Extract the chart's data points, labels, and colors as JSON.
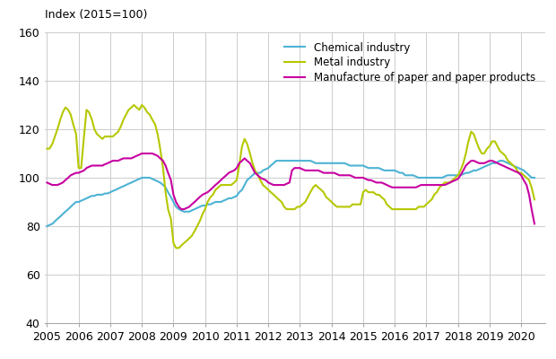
{
  "title": "Index (2015=100)",
  "ylim": [
    40,
    160
  ],
  "yticks": [
    40,
    60,
    80,
    100,
    120,
    140,
    160
  ],
  "xlim": [
    2004.92,
    2020.75
  ],
  "xticks": [
    2005,
    2006,
    2007,
    2008,
    2009,
    2010,
    2011,
    2012,
    2013,
    2014,
    2015,
    2016,
    2017,
    2018,
    2019,
    2020
  ],
  "legend_labels": [
    "Chemical industry",
    "Metal industry",
    "Manufacture of paper and paper products"
  ],
  "legend_colors": [
    "#4db3d4",
    "#b5c800",
    "#c800a1"
  ],
  "chemical": {
    "t": [
      2005.0,
      2005.08,
      2005.17,
      2005.25,
      2005.33,
      2005.42,
      2005.5,
      2005.58,
      2005.67,
      2005.75,
      2005.83,
      2005.92,
      2006.0,
      2006.08,
      2006.17,
      2006.25,
      2006.33,
      2006.42,
      2006.5,
      2006.58,
      2006.67,
      2006.75,
      2006.83,
      2006.92,
      2007.0,
      2007.08,
      2007.17,
      2007.25,
      2007.33,
      2007.42,
      2007.5,
      2007.58,
      2007.67,
      2007.75,
      2007.83,
      2007.92,
      2008.0,
      2008.08,
      2008.17,
      2008.25,
      2008.33,
      2008.42,
      2008.5,
      2008.58,
      2008.67,
      2008.75,
      2008.83,
      2008.92,
      2009.0,
      2009.08,
      2009.17,
      2009.25,
      2009.33,
      2009.42,
      2009.5,
      2009.58,
      2009.67,
      2009.75,
      2009.83,
      2009.92,
      2010.0,
      2010.08,
      2010.17,
      2010.25,
      2010.33,
      2010.42,
      2010.5,
      2010.58,
      2010.67,
      2010.75,
      2010.83,
      2010.92,
      2011.0,
      2011.08,
      2011.17,
      2011.25,
      2011.33,
      2011.42,
      2011.5,
      2011.58,
      2011.67,
      2011.75,
      2011.83,
      2011.92,
      2012.0,
      2012.08,
      2012.17,
      2012.25,
      2012.33,
      2012.42,
      2012.5,
      2012.58,
      2012.67,
      2012.75,
      2012.83,
      2012.92,
      2013.0,
      2013.08,
      2013.17,
      2013.25,
      2013.33,
      2013.42,
      2013.5,
      2013.58,
      2013.67,
      2013.75,
      2013.83,
      2013.92,
      2014.0,
      2014.08,
      2014.17,
      2014.25,
      2014.33,
      2014.42,
      2014.5,
      2014.58,
      2014.67,
      2014.75,
      2014.83,
      2014.92,
      2015.0,
      2015.08,
      2015.17,
      2015.25,
      2015.33,
      2015.42,
      2015.5,
      2015.58,
      2015.67,
      2015.75,
      2015.83,
      2015.92,
      2016.0,
      2016.08,
      2016.17,
      2016.25,
      2016.33,
      2016.42,
      2016.5,
      2016.58,
      2016.67,
      2016.75,
      2016.83,
      2016.92,
      2017.0,
      2017.08,
      2017.17,
      2017.25,
      2017.33,
      2017.42,
      2017.5,
      2017.58,
      2017.67,
      2017.75,
      2017.83,
      2017.92,
      2018.0,
      2018.08,
      2018.17,
      2018.25,
      2018.33,
      2018.42,
      2018.5,
      2018.58,
      2018.67,
      2018.75,
      2018.83,
      2018.92,
      2019.0,
      2019.08,
      2019.17,
      2019.25,
      2019.33,
      2019.42,
      2019.5,
      2019.58,
      2019.67,
      2019.75,
      2019.83,
      2019.92,
      2020.0,
      2020.08,
      2020.17,
      2020.25,
      2020.33,
      2020.42
    ],
    "v": [
      80,
      80.5,
      81,
      82,
      83,
      84,
      85,
      86,
      87,
      88,
      89,
      90,
      90,
      90.5,
      91,
      91.5,
      92,
      92.5,
      92.5,
      93,
      93,
      93,
      93.5,
      93.5,
      94,
      94.5,
      95,
      95.5,
      96,
      96.5,
      97,
      97.5,
      98,
      98.5,
      99,
      99.5,
      100,
      100,
      100,
      100,
      99.5,
      99,
      98.5,
      98,
      97,
      96,
      94,
      92,
      90,
      88,
      87,
      86.5,
      86,
      86,
      86,
      86.5,
      87,
      87.5,
      88,
      88.5,
      88.5,
      89,
      89,
      89.5,
      90,
      90,
      90,
      90.5,
      91,
      91.5,
      91.5,
      92,
      92.5,
      94,
      95,
      97,
      99,
      100,
      101,
      102,
      102,
      102,
      103,
      103.5,
      104,
      105,
      106,
      107,
      107,
      107,
      107,
      107,
      107,
      107,
      107,
      107,
      107,
      107,
      107,
      107,
      107,
      106.5,
      106,
      106,
      106,
      106,
      106,
      106,
      106,
      106,
      106,
      106,
      106,
      106,
      105.5,
      105,
      105,
      105,
      105,
      105,
      105,
      104.5,
      104,
      104,
      104,
      104,
      104,
      103.5,
      103,
      103,
      103,
      103,
      103,
      102.5,
      102,
      102,
      101,
      101,
      101,
      101,
      100.5,
      100,
      100,
      100,
      100,
      100,
      100,
      100,
      100,
      100,
      100,
      100.5,
      101,
      101,
      101,
      101,
      101,
      101,
      101.5,
      102,
      102,
      102.5,
      103,
      103,
      103.5,
      104,
      104.5,
      105,
      105.5,
      106,
      106,
      106.5,
      107,
      107,
      106.5,
      106,
      105.5,
      105,
      104.5,
      104,
      103.5,
      103,
      102,
      101,
      100,
      100
    ]
  },
  "metal": {
    "t": [
      2005.0,
      2005.08,
      2005.17,
      2005.25,
      2005.33,
      2005.42,
      2005.5,
      2005.58,
      2005.67,
      2005.75,
      2005.83,
      2005.92,
      2006.0,
      2006.08,
      2006.17,
      2006.25,
      2006.33,
      2006.42,
      2006.5,
      2006.58,
      2006.67,
      2006.75,
      2006.83,
      2006.92,
      2007.0,
      2007.08,
      2007.17,
      2007.25,
      2007.33,
      2007.42,
      2007.5,
      2007.58,
      2007.67,
      2007.75,
      2007.83,
      2007.92,
      2008.0,
      2008.08,
      2008.17,
      2008.25,
      2008.33,
      2008.42,
      2008.5,
      2008.58,
      2008.67,
      2008.75,
      2008.83,
      2008.92,
      2009.0,
      2009.08,
      2009.17,
      2009.25,
      2009.33,
      2009.42,
      2009.5,
      2009.58,
      2009.67,
      2009.75,
      2009.83,
      2009.92,
      2010.0,
      2010.08,
      2010.17,
      2010.25,
      2010.33,
      2010.42,
      2010.5,
      2010.58,
      2010.67,
      2010.75,
      2010.83,
      2010.92,
      2011.0,
      2011.08,
      2011.17,
      2011.25,
      2011.33,
      2011.42,
      2011.5,
      2011.58,
      2011.67,
      2011.75,
      2011.83,
      2011.92,
      2012.0,
      2012.08,
      2012.17,
      2012.25,
      2012.33,
      2012.42,
      2012.5,
      2012.58,
      2012.67,
      2012.75,
      2012.83,
      2012.92,
      2013.0,
      2013.08,
      2013.17,
      2013.25,
      2013.33,
      2013.42,
      2013.5,
      2013.58,
      2013.67,
      2013.75,
      2013.83,
      2013.92,
      2014.0,
      2014.08,
      2014.17,
      2014.25,
      2014.33,
      2014.42,
      2014.5,
      2014.58,
      2014.67,
      2014.75,
      2014.83,
      2014.92,
      2015.0,
      2015.08,
      2015.17,
      2015.25,
      2015.33,
      2015.42,
      2015.5,
      2015.58,
      2015.67,
      2015.75,
      2015.83,
      2015.92,
      2016.0,
      2016.08,
      2016.17,
      2016.25,
      2016.33,
      2016.42,
      2016.5,
      2016.58,
      2016.67,
      2016.75,
      2016.83,
      2016.92,
      2017.0,
      2017.08,
      2017.17,
      2017.25,
      2017.33,
      2017.42,
      2017.5,
      2017.58,
      2017.67,
      2017.75,
      2017.83,
      2017.92,
      2018.0,
      2018.08,
      2018.17,
      2018.25,
      2018.33,
      2018.42,
      2018.5,
      2018.58,
      2018.67,
      2018.75,
      2018.83,
      2018.92,
      2019.0,
      2019.08,
      2019.17,
      2019.25,
      2019.33,
      2019.42,
      2019.5,
      2019.58,
      2019.67,
      2019.75,
      2019.83,
      2019.92,
      2020.0,
      2020.08,
      2020.17,
      2020.25,
      2020.33,
      2020.42
    ],
    "v": [
      112,
      112,
      114,
      117,
      120,
      124,
      127,
      129,
      128,
      126,
      122,
      118,
      104,
      104,
      117,
      128,
      127,
      124,
      120,
      118,
      117,
      116,
      117,
      117,
      117,
      117,
      118,
      119,
      121,
      124,
      126,
      128,
      129,
      130,
      129,
      128,
      130,
      129,
      127,
      126,
      124,
      122,
      118,
      112,
      104,
      94,
      87,
      83,
      73,
      71,
      71,
      72,
      73,
      74,
      75,
      76,
      78,
      80,
      82,
      85,
      87,
      90,
      92,
      93,
      95,
      96,
      97,
      97,
      97,
      97,
      97,
      98,
      99,
      105,
      113,
      116,
      114,
      110,
      106,
      103,
      101,
      99,
      97,
      96,
      95,
      94,
      93,
      92,
      91,
      90,
      88,
      87,
      87,
      87,
      87,
      88,
      88,
      89,
      90,
      92,
      94,
      96,
      97,
      96,
      95,
      94,
      92,
      91,
      90,
      89,
      88,
      88,
      88,
      88,
      88,
      88,
      89,
      89,
      89,
      89,
      94,
      95,
      94,
      94,
      94,
      93,
      93,
      92,
      91,
      89,
      88,
      87,
      87,
      87,
      87,
      87,
      87,
      87,
      87,
      87,
      87,
      88,
      88,
      88,
      89,
      90,
      91,
      93,
      94,
      96,
      97,
      98,
      98,
      98,
      99,
      100,
      101,
      103,
      106,
      110,
      115,
      119,
      118,
      115,
      112,
      110,
      110,
      112,
      113,
      115,
      115,
      113,
      111,
      110,
      109,
      107,
      106,
      105,
      104,
      102,
      102,
      101,
      100,
      99,
      96,
      91
    ]
  },
  "paper": {
    "t": [
      2005.0,
      2005.08,
      2005.17,
      2005.25,
      2005.33,
      2005.42,
      2005.5,
      2005.58,
      2005.67,
      2005.75,
      2005.83,
      2005.92,
      2006.0,
      2006.08,
      2006.17,
      2006.25,
      2006.33,
      2006.42,
      2006.5,
      2006.58,
      2006.67,
      2006.75,
      2006.83,
      2006.92,
      2007.0,
      2007.08,
      2007.17,
      2007.25,
      2007.33,
      2007.42,
      2007.5,
      2007.58,
      2007.67,
      2007.75,
      2007.83,
      2007.92,
      2008.0,
      2008.08,
      2008.17,
      2008.25,
      2008.33,
      2008.42,
      2008.5,
      2008.58,
      2008.67,
      2008.75,
      2008.83,
      2008.92,
      2009.0,
      2009.08,
      2009.17,
      2009.25,
      2009.33,
      2009.42,
      2009.5,
      2009.58,
      2009.67,
      2009.75,
      2009.83,
      2009.92,
      2010.0,
      2010.08,
      2010.17,
      2010.25,
      2010.33,
      2010.42,
      2010.5,
      2010.58,
      2010.67,
      2010.75,
      2010.83,
      2010.92,
      2011.0,
      2011.08,
      2011.17,
      2011.25,
      2011.33,
      2011.42,
      2011.5,
      2011.58,
      2011.67,
      2011.75,
      2011.83,
      2011.92,
      2012.0,
      2012.08,
      2012.17,
      2012.25,
      2012.33,
      2012.42,
      2012.5,
      2012.58,
      2012.67,
      2012.75,
      2012.83,
      2012.92,
      2013.0,
      2013.08,
      2013.17,
      2013.25,
      2013.33,
      2013.42,
      2013.5,
      2013.58,
      2013.67,
      2013.75,
      2013.83,
      2013.92,
      2014.0,
      2014.08,
      2014.17,
      2014.25,
      2014.33,
      2014.42,
      2014.5,
      2014.58,
      2014.67,
      2014.75,
      2014.83,
      2014.92,
      2015.0,
      2015.08,
      2015.17,
      2015.25,
      2015.33,
      2015.42,
      2015.5,
      2015.58,
      2015.67,
      2015.75,
      2015.83,
      2015.92,
      2016.0,
      2016.08,
      2016.17,
      2016.25,
      2016.33,
      2016.42,
      2016.5,
      2016.58,
      2016.67,
      2016.75,
      2016.83,
      2016.92,
      2017.0,
      2017.08,
      2017.17,
      2017.25,
      2017.33,
      2017.42,
      2017.5,
      2017.58,
      2017.67,
      2017.75,
      2017.83,
      2017.92,
      2018.0,
      2018.08,
      2018.17,
      2018.25,
      2018.33,
      2018.42,
      2018.5,
      2018.58,
      2018.67,
      2018.75,
      2018.83,
      2018.92,
      2019.0,
      2019.08,
      2019.17,
      2019.25,
      2019.33,
      2019.42,
      2019.5,
      2019.58,
      2019.67,
      2019.75,
      2019.83,
      2019.92,
      2020.0,
      2020.08,
      2020.17,
      2020.25,
      2020.33,
      2020.42
    ],
    "v": [
      98,
      97.5,
      97,
      97,
      97,
      97.5,
      98,
      99,
      100,
      101,
      101.5,
      102,
      102,
      102.5,
      103,
      104,
      104.5,
      105,
      105,
      105,
      105,
      105,
      105.5,
      106,
      106.5,
      107,
      107,
      107,
      107.5,
      108,
      108,
      108,
      108,
      108.5,
      109,
      109.5,
      110,
      110,
      110,
      110,
      110,
      109.5,
      109,
      108,
      107,
      105,
      102,
      99,
      93,
      90,
      88,
      87,
      87,
      87.5,
      88,
      89,
      90,
      91,
      92,
      93,
      93.5,
      94,
      95,
      96,
      97,
      98,
      99,
      100,
      101,
      102,
      102.5,
      103,
      104,
      106,
      107,
      108,
      107,
      106,
      104,
      102,
      101,
      100,
      99.5,
      99,
      98,
      97.5,
      97,
      97,
      97,
      97,
      97,
      97.5,
      98,
      103,
      104,
      104,
      104,
      103.5,
      103,
      103,
      103,
      103,
      103,
      103,
      102.5,
      102,
      102,
      102,
      102,
      102,
      101.5,
      101,
      101,
      101,
      101,
      101,
      100.5,
      100,
      100,
      100,
      100,
      99.5,
      99,
      99,
      98.5,
      98,
      98,
      98,
      97.5,
      97,
      96.5,
      96,
      96,
      96,
      96,
      96,
      96,
      96,
      96,
      96,
      96,
      96.5,
      97,
      97,
      97,
      97,
      97,
      97,
      97,
      97,
      97,
      97,
      97.5,
      98,
      98.5,
      99,
      99.5,
      101,
      103,
      105,
      106,
      107,
      107,
      106.5,
      106,
      106,
      106,
      106.5,
      107,
      107,
      106.5,
      106,
      105.5,
      105,
      104.5,
      104,
      103.5,
      103,
      102.5,
      102,
      101,
      99,
      97,
      93,
      87,
      81
    ]
  },
  "background_color": "#ffffff",
  "grid_color": "#cccccc",
  "line_width": 1.5,
  "title_fontsize": 9,
  "tick_fontsize": 9,
  "legend_fontsize": 8.5
}
